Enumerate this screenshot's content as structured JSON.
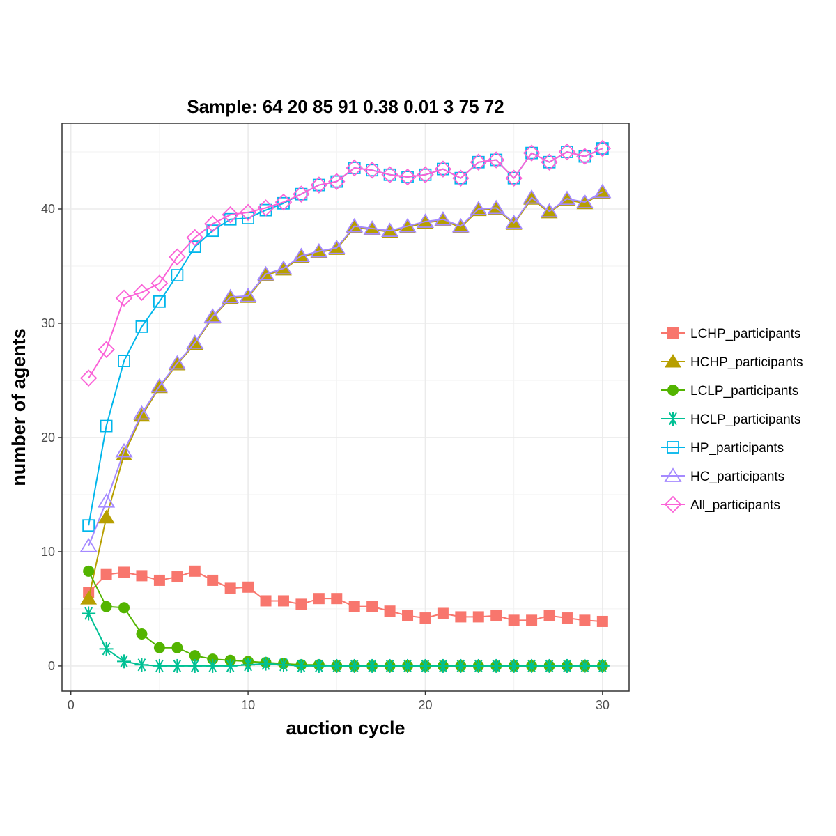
{
  "chart_data": {
    "type": "line",
    "title": "Sample: 64 20 85 91 0.38 0.01 3 75 72",
    "xlabel": "auction cycle",
    "ylabel": "number of agents",
    "xlim": [
      -0.5,
      31.5
    ],
    "ylim": [
      -2.2,
      47.5
    ],
    "x_ticks": [
      0,
      10,
      20,
      30
    ],
    "y_ticks": [
      0,
      10,
      20,
      30,
      40
    ],
    "grid": true,
    "legend_position": "right",
    "x": [
      1,
      2,
      3,
      4,
      5,
      6,
      7,
      8,
      9,
      10,
      11,
      12,
      13,
      14,
      15,
      16,
      17,
      18,
      19,
      20,
      21,
      22,
      23,
      24,
      25,
      26,
      27,
      28,
      29,
      30
    ],
    "series": [
      {
        "name": "LCHP_participants",
        "color": "#F8766D",
        "marker": "filled-square",
        "values": [
          6.4,
          8.0,
          8.2,
          7.9,
          7.5,
          7.8,
          8.3,
          7.5,
          6.8,
          6.9,
          5.7,
          5.7,
          5.4,
          5.9,
          5.9,
          5.2,
          5.2,
          4.8,
          4.4,
          4.2,
          4.6,
          4.3,
          4.3,
          4.4,
          4.0,
          4.0,
          4.4,
          4.2,
          4.0,
          3.9
        ]
      },
      {
        "name": "HCHP_participants",
        "color": "#B79F00",
        "marker": "filled-triangle",
        "values": [
          5.9,
          13.0,
          18.5,
          21.9,
          24.4,
          26.4,
          28.2,
          30.5,
          32.2,
          32.3,
          34.2,
          34.7,
          35.8,
          36.2,
          36.5,
          38.4,
          38.2,
          38.0,
          38.4,
          38.8,
          39.0,
          38.4,
          39.9,
          40.0,
          38.7,
          40.9,
          39.7,
          40.8,
          40.5,
          41.4
        ]
      },
      {
        "name": "LCLP_participants",
        "color": "#53B400",
        "marker": "filled-circle",
        "values": [
          8.3,
          5.2,
          5.1,
          2.8,
          1.6,
          1.6,
          0.9,
          0.6,
          0.5,
          0.4,
          0.3,
          0.2,
          0.1,
          0.1,
          0.0,
          0.0,
          0.0,
          0.0,
          0.0,
          0.0,
          0.0,
          0.0,
          0.0,
          0.0,
          0.0,
          0.0,
          0.0,
          0.0,
          0.0,
          0.0
        ]
      },
      {
        "name": "HCLP_participants",
        "color": "#00C094",
        "marker": "asterisk",
        "values": [
          4.6,
          1.5,
          0.4,
          0.1,
          0.0,
          0.0,
          0.0,
          0.0,
          0.0,
          0.1,
          0.2,
          0.1,
          0.0,
          0.0,
          0.0,
          0.0,
          0.0,
          0.0,
          0.0,
          0.0,
          0.0,
          0.0,
          0.0,
          0.0,
          0.0,
          0.0,
          0.0,
          0.0,
          0.0,
          0.0
        ]
      },
      {
        "name": "HP_participants",
        "color": "#00B6EB",
        "marker": "open-square",
        "values": [
          12.3,
          21.0,
          26.7,
          29.7,
          31.9,
          34.2,
          36.7,
          38.1,
          39.1,
          39.2,
          39.9,
          40.5,
          41.3,
          42.1,
          42.4,
          43.6,
          43.4,
          43.0,
          42.8,
          43.0,
          43.5,
          42.7,
          44.1,
          44.3,
          42.7,
          44.9,
          44.1,
          45.0,
          44.6,
          45.3
        ]
      },
      {
        "name": "HC_participants",
        "color": "#A58AFF",
        "marker": "open-triangle",
        "values": [
          10.5,
          14.4,
          18.8,
          22.1,
          24.5,
          26.5,
          28.3,
          30.6,
          32.3,
          32.4,
          34.3,
          34.8,
          35.9,
          36.3,
          36.6,
          38.5,
          38.3,
          38.1,
          38.5,
          38.9,
          39.1,
          38.5,
          40.0,
          40.1,
          38.8,
          41.0,
          39.8,
          40.9,
          40.6,
          41.5
        ]
      },
      {
        "name": "All_participants",
        "color": "#FB61D7",
        "marker": "open-diamond",
        "values": [
          25.2,
          27.7,
          32.2,
          32.7,
          33.5,
          35.8,
          37.5,
          38.7,
          39.5,
          39.7,
          40.1,
          40.6,
          41.3,
          42.1,
          42.4,
          43.6,
          43.4,
          43.0,
          42.8,
          43.0,
          43.5,
          42.7,
          44.1,
          44.3,
          42.7,
          44.9,
          44.1,
          45.0,
          44.6,
          45.3
        ]
      }
    ]
  }
}
